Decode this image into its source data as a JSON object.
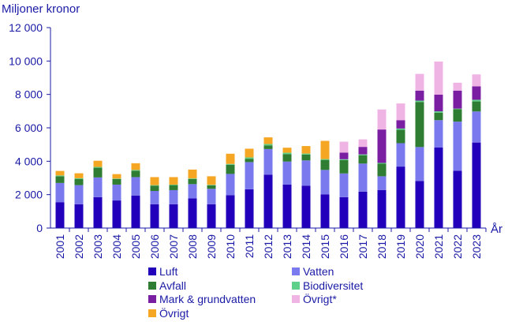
{
  "chart_data": {
    "type": "bar",
    "stacked": true,
    "ylabel": "Miljoner kronor",
    "xlabel": "År",
    "ylim": [
      0,
      12000
    ],
    "yticks": [
      0,
      2000,
      4000,
      6000,
      8000,
      10000,
      12000
    ],
    "ytick_labels": [
      "0",
      "2 000",
      "4 000",
      "6 000",
      "8 000",
      "10 000",
      "12 000"
    ],
    "grid": false,
    "legend_position": "bottom",
    "categories": [
      "2001",
      "2002",
      "2003",
      "2004",
      "2005",
      "2006",
      "2007",
      "2008",
      "2009",
      "2010",
      "2011",
      "2012",
      "2013",
      "2014",
      "2015",
      "2016",
      "2017",
      "2018",
      "2019",
      "2020",
      "2021",
      "2022",
      "2023"
    ],
    "series": [
      {
        "name": "Luft",
        "color": "#2200bb",
        "values": [
          1550,
          1420,
          1850,
          1650,
          1950,
          1420,
          1420,
          1780,
          1420,
          1970,
          2320,
          3200,
          2600,
          2540,
          2020,
          1850,
          2180,
          2280,
          3680,
          2820,
          4820,
          3430,
          5120
        ]
      },
      {
        "name": "Vatten",
        "color": "#7a7aee",
        "values": [
          1150,
          1150,
          1180,
          950,
          1100,
          800,
          850,
          850,
          930,
          1270,
          1630,
          1530,
          1380,
          1510,
          1460,
          1420,
          1680,
          820,
          1400,
          2030,
          1640,
          2940,
          1860
        ]
      },
      {
        "name": "Avfall",
        "color": "#2e7d32",
        "values": [
          400,
          360,
          580,
          330,
          380,
          320,
          300,
          300,
          210,
          550,
          200,
          220,
          450,
          350,
          600,
          800,
          500,
          750,
          800,
          2700,
          450,
          750,
          600
        ]
      },
      {
        "name": "Biodiversitet",
        "color": "#5fd08a",
        "values": [
          50,
          50,
          50,
          30,
          50,
          30,
          30,
          40,
          30,
          50,
          80,
          80,
          80,
          60,
          50,
          50,
          50,
          50,
          80,
          80,
          80,
          30,
          100
        ]
      },
      {
        "name": "Mark & grundvatten",
        "color": "#7b1fa2",
        "values": [
          0,
          0,
          0,
          0,
          0,
          0,
          0,
          0,
          0,
          0,
          0,
          0,
          0,
          0,
          0,
          400,
          450,
          2000,
          500,
          600,
          1000,
          1080,
          800
        ]
      },
      {
        "name": "Övrigt*",
        "color": "#f0b4e4",
        "values": [
          0,
          0,
          0,
          0,
          0,
          0,
          0,
          0,
          0,
          0,
          0,
          0,
          0,
          0,
          0,
          650,
          450,
          1200,
          1000,
          1000,
          1980,
          470,
          720
        ]
      },
      {
        "name": "Övrigt",
        "color": "#f5a623",
        "values": [
          270,
          300,
          370,
          270,
          400,
          480,
          450,
          530,
          510,
          610,
          520,
          400,
          300,
          450,
          1090,
          0,
          0,
          0,
          0,
          0,
          0,
          0,
          0
        ]
      }
    ]
  }
}
